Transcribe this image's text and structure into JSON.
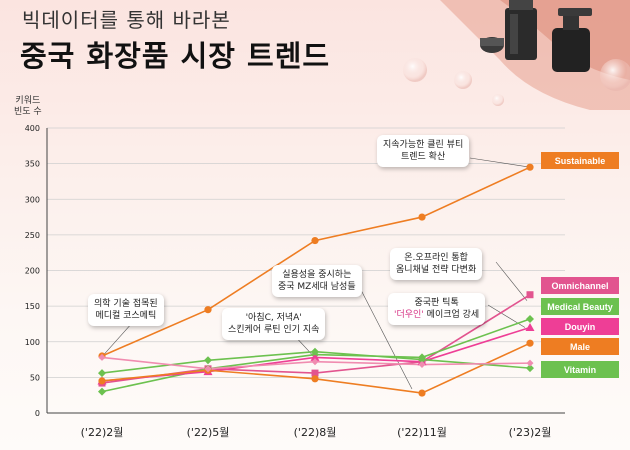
{
  "header": {
    "subtitle": "빅데이터를 통해 바라본",
    "title": "중국 화장품 시장 트렌드"
  },
  "chart_data": {
    "type": "line",
    "ylabel_line1": "키워드",
    "ylabel_line2": "빈도 수",
    "ylim": [
      0,
      400
    ],
    "yticks": [
      "0",
      "50",
      "100",
      "150",
      "200",
      "250",
      "300",
      "350",
      "400"
    ],
    "categories": [
      "('22)2월",
      "('22)5월",
      "('22)8월",
      "('22)11월",
      "('23)2월"
    ],
    "grid": true,
    "legend_position": "right",
    "series": [
      {
        "name": "Sustainable",
        "color": "#ee7d22",
        "values": [
          80,
          145,
          242,
          275,
          345
        ]
      },
      {
        "name": "Omnichannel",
        "color": "#e2548f",
        "values": [
          42,
          62,
          56,
          72,
          166
        ]
      },
      {
        "name": "Medical Beauty",
        "color": "#6cc14f",
        "values": [
          30,
          62,
          82,
          78,
          132
        ]
      },
      {
        "name": "Douyin",
        "color": "#ee3e96",
        "values": [
          45,
          58,
          78,
          72,
          120
        ]
      },
      {
        "name": "Male",
        "color": "#ee7d22",
        "values": [
          45,
          60,
          48,
          28,
          98
        ]
      },
      {
        "name": "Vitamin",
        "color": "#6cc14f",
        "values": [
          56,
          74,
          86,
          75,
          63
        ]
      },
      {
        "name": "",
        "color": "#f08cb0",
        "values": [
          78,
          62,
          72,
          68,
          70
        ]
      }
    ]
  },
  "annotations": {
    "sustainable": {
      "line1": "지속가능한 클린 뷰티",
      "line2": "트렌드 확산"
    },
    "omnichannel": {
      "line1": "온.오프라인 통합",
      "line2": "옴니채널 전략 다변화"
    },
    "douyin": {
      "line1": "중국판 틱톡",
      "line2a": "'더우인'",
      "line2b": " 메이크업 강세"
    },
    "male": {
      "line1": "실용성을 중시하는",
      "line2": "중국 MZ세대 남성들"
    },
    "medical": {
      "line1": "의학 기술 접목된",
      "line2": "메디컬 코스메틱"
    },
    "vitamin": {
      "line1": "'아침C, 저녁A'",
      "line2": "스킨케어 루틴 인기 지속"
    }
  }
}
